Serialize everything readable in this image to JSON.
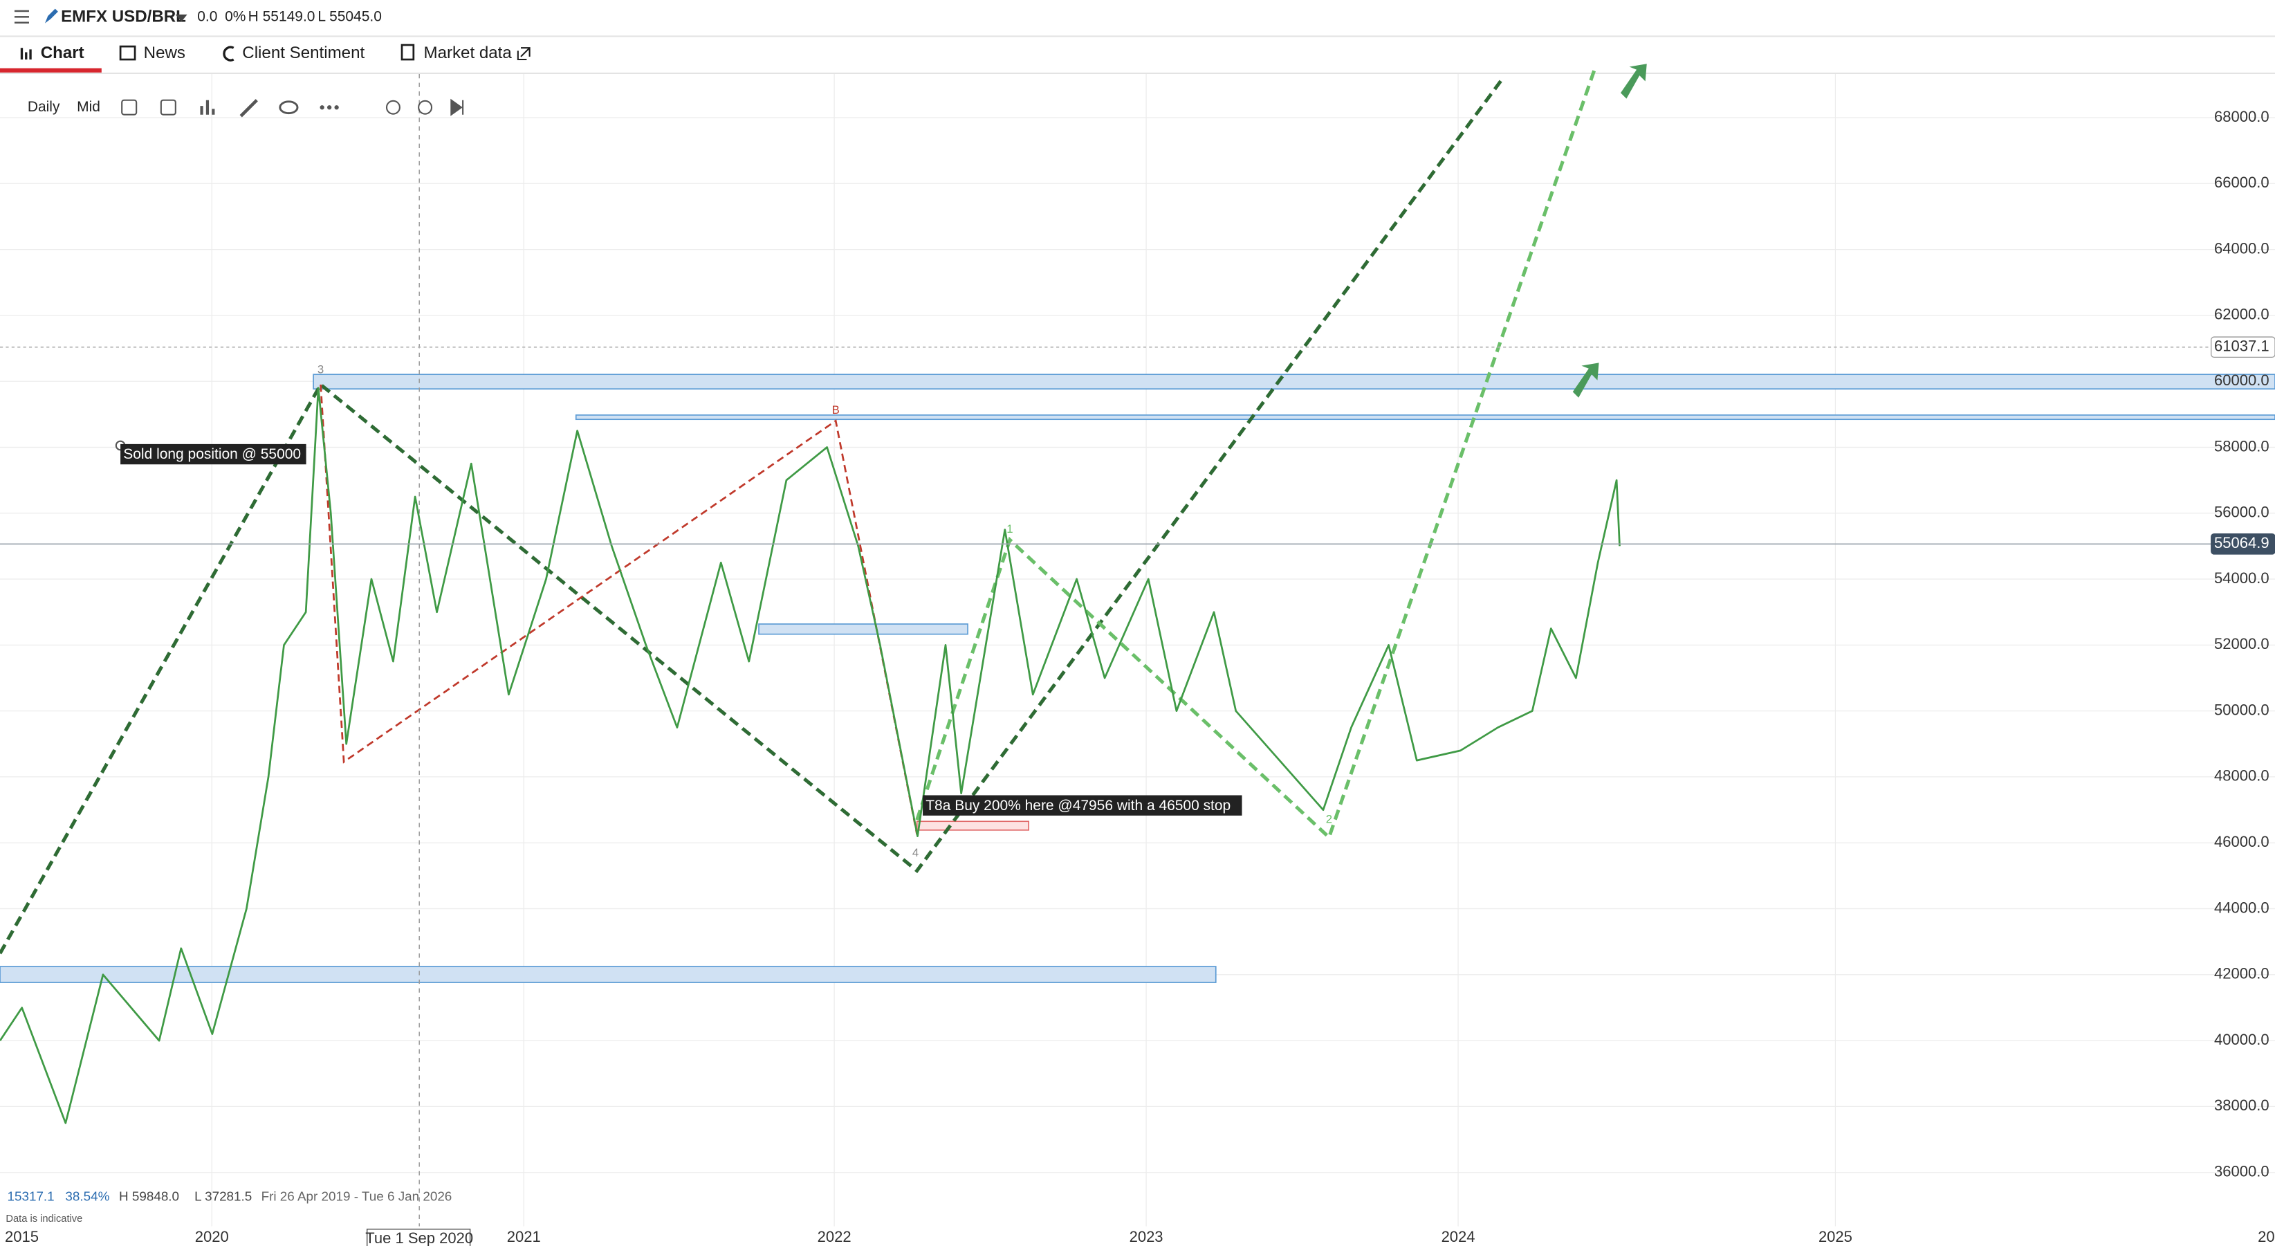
{
  "header": {
    "instrument": "EMFX USD/BRL",
    "change": "0.0",
    "change_pct": "0%",
    "high": "H 55149.0",
    "low": "L 55045.0"
  },
  "tabs": [
    "Chart",
    "News",
    "Client Sentiment",
    "Market data"
  ],
  "toolbar": {
    "interval": "Daily",
    "price_type": "Mid"
  },
  "chart_data": {
    "type": "line",
    "color": "#3f9a45",
    "x": [
      2019.32,
      2019.39,
      2019.53,
      2019.65,
      2019.83,
      2019.9,
      2020.0,
      2020.11,
      2020.18,
      2020.23,
      2020.3,
      2020.34,
      2020.38,
      2020.43,
      2020.51,
      2020.58,
      2020.65,
      2020.72,
      2020.83,
      2020.95,
      2021.07,
      2021.17,
      2021.28,
      2021.39,
      2021.49,
      2021.63,
      2021.72,
      2021.84,
      2021.97,
      2022.07,
      2022.14,
      2022.26,
      2022.35,
      2022.4,
      2022.54,
      2022.63,
      2022.77,
      2022.86,
      2023.0,
      2023.09,
      2023.21,
      2023.28,
      2023.42,
      2023.56,
      2023.65,
      2023.77,
      2023.86,
      2024.0,
      2024.12,
      2024.23,
      2024.29,
      2024.37,
      2024.44,
      2024.5,
      2024.51
    ],
    "values": [
      40000,
      41000,
      37500,
      42000,
      40000,
      42800,
      40200,
      44000,
      48000,
      52000,
      53000,
      59800,
      56000,
      49000,
      54000,
      51500,
      56500,
      53000,
      57500,
      50500,
      54000,
      58500,
      55000,
      52000,
      49500,
      54500,
      51500,
      57000,
      58000,
      55000,
      52000,
      46200,
      52000,
      47500,
      55500,
      50500,
      54000,
      51000,
      54000,
      50000,
      53000,
      50000,
      48500,
      47000,
      49500,
      52000,
      48500,
      48800,
      49500,
      50000,
      52500,
      51000,
      54500,
      57000,
      55000
    ],
    "xlim": [
      2019.32,
      2026.61
    ],
    "ylim": [
      34368,
      69322
    ],
    "yticks": [
      {
        "value": 68000,
        "label": "68000.0"
      },
      {
        "value": 66000,
        "label": "66000.0"
      },
      {
        "value": 64000,
        "label": "64000.0"
      },
      {
        "value": 62000,
        "label": "62000.0"
      },
      {
        "value": 60000,
        "label": "60000.0"
      },
      {
        "value": 58000,
        "label": "58000.0"
      },
      {
        "value": 56000,
        "label": "56000.0"
      },
      {
        "value": 54000,
        "label": "54000.0"
      },
      {
        "value": 52000,
        "label": "52000.0"
      },
      {
        "value": 50000,
        "label": "50000.0"
      },
      {
        "value": 48000,
        "label": "48000.0"
      },
      {
        "value": 46000,
        "label": "46000.0"
      },
      {
        "value": 44000,
        "label": "44000.0"
      },
      {
        "value": 42000,
        "label": "42000.0"
      },
      {
        "value": 40000,
        "label": "40000.0"
      },
      {
        "value": 38000,
        "label": "38000.0"
      },
      {
        "value": 36000,
        "label": "36000.0"
      }
    ],
    "price_markers": [
      61037.1,
      55064.9
    ],
    "x_labels": [
      "2015",
      "2020",
      "2021",
      "2022",
      "2023",
      "2024",
      "2025",
      "20"
    ],
    "crosshair_label": "Tue 1 Sep 2020",
    "annotations": [
      "Sold long position @ 55000",
      "T8a Buy 200% here @47956 with a 46500 stop"
    ],
    "wave_labels": [
      "3",
      "B",
      "4",
      "1",
      "2"
    ],
    "stats": {
      "range": "15317.1",
      "range_pct": "38.54%",
      "high": "H 59848.0",
      "low": "L 37281.5",
      "period": "Fri 26 Apr 2019 - Tue 6 Jan 2026"
    },
    "note": "Data is indicative"
  }
}
